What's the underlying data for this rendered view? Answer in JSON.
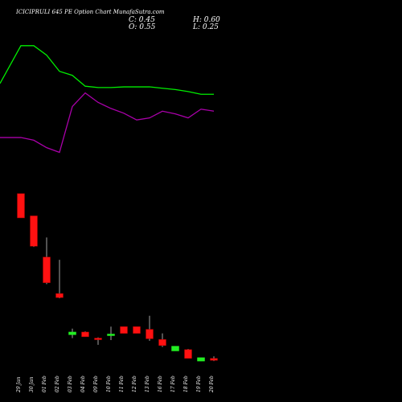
{
  "header": {
    "title": "ICICIPRULI 645 PE Option  Chart MunafaSutra.com",
    "close_label": "C: 0.45",
    "open_label": "O: 0.55",
    "high_label": "H: 0.60",
    "low_label": "L: 0.25"
  },
  "colors": {
    "background": "#000000",
    "bullish": "#22ee22",
    "bearish": "#ff1111",
    "wick": "#cfcfcf",
    "ma_green": "#00ee00",
    "ma_purple": "#aa00aa"
  },
  "chart_data": {
    "type": "candlestick",
    "categories": [
      "29 Jan",
      "30 Jan",
      "01 Feb",
      "02 Feb",
      "03 Feb",
      "04 Feb",
      "09 Feb",
      "10 Feb",
      "11 Feb",
      "12 Feb",
      "13 Feb",
      "16 Feb",
      "17 Feb",
      "18 Feb",
      "19 Feb",
      "20 Feb"
    ],
    "candles": [
      {
        "open": 12.1,
        "high": 12.1,
        "low": 8.5,
        "close": 8.5
      },
      {
        "open": 8.8,
        "high": 8.8,
        "low": 4.2,
        "close": 4.3
      },
      {
        "open": 2.7,
        "high": 5.6,
        "low": -1.3,
        "close": -1.1
      },
      {
        "open": -2.7,
        "high": 2.3,
        "low": -3.4,
        "close": -3.3
      },
      {
        "open": -8.8,
        "high": -7.9,
        "low": -9.3,
        "close": -8.4
      },
      {
        "open": -8.4,
        "high": -8.3,
        "low": -9.1,
        "close": -9.1
      },
      {
        "open": -9.3,
        "high": -9.2,
        "low": -10.3,
        "close": -9.5
      },
      {
        "open": -8.8,
        "high": -7.6,
        "low": -9.6,
        "close": -8.7
      },
      {
        "open": -7.6,
        "high": -7.6,
        "low": -8.6,
        "close": -8.6
      },
      {
        "open": -7.6,
        "high": -7.6,
        "low": -8.6,
        "close": -8.6
      },
      {
        "open": -8.0,
        "high": -6.0,
        "low": -9.7,
        "close": -9.4
      },
      {
        "open": -9.5,
        "high": -8.6,
        "low": -10.6,
        "close": -10.4
      },
      {
        "open": -11.2,
        "high": -10.5,
        "low": -11.2,
        "close": -10.5
      },
      {
        "open": -11.0,
        "high": -10.9,
        "low": -12.3,
        "close": -12.3
      },
      {
        "open": -12.7,
        "high": -12.2,
        "low": -12.7,
        "close": -12.2
      },
      {
        "open": -12.3,
        "high": -12.0,
        "low": -12.7,
        "close": -12.6
      }
    ],
    "ma_fast": [
      20.4,
      20.0,
      18.9,
      18.2,
      25.0,
      27.0,
      25.6,
      24.7,
      24.0,
      23.0,
      23.3,
      24.3,
      23.9,
      23.3,
      24.6,
      24.3
    ],
    "ma_slow": [
      34.0,
      34.0,
      32.6,
      30.2,
      29.6,
      28.0,
      27.8,
      27.8,
      27.9,
      27.9,
      27.9,
      27.7,
      27.5,
      27.2,
      26.8,
      26.8
    ],
    "ma_slow_start": 28.4,
    "ma_fast_start": 20.4,
    "ylim": [
      -14,
      36
    ]
  }
}
